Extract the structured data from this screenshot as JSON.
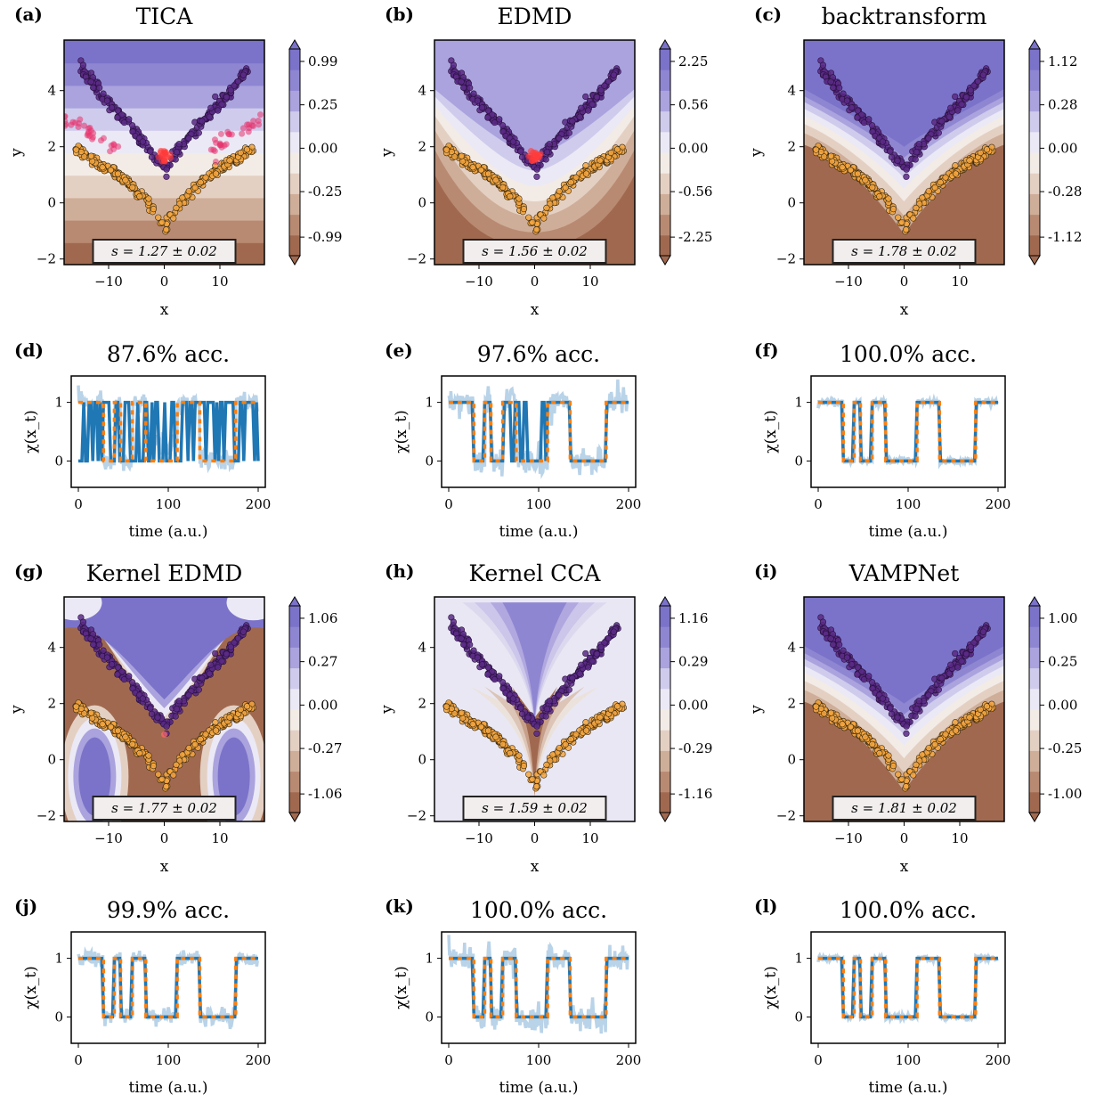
{
  "colors": {
    "state_top": "#5b2a86",
    "state_bottom": "#f4a640",
    "highlight": "#ff3b3b",
    "chi_light": "#b9d3e8",
    "chi_dark": "#1f77b4",
    "chi_true": "#ff7f0e",
    "brown": "#a0694f",
    "purple": "#7b73c9"
  },
  "contour_panels": [
    {
      "key": "a",
      "label": "(a)",
      "title": "TICA",
      "score": "s = 1.27 ± 0.02",
      "cbar_ticks": [
        "0.99",
        "0.25",
        "0.00",
        "-0.25",
        "-0.99"
      ],
      "xlabel": "x",
      "ylabel": "y",
      "xticks": [
        "−10",
        "0",
        "10"
      ],
      "yticks": [
        "−2",
        "0",
        "2",
        "4"
      ],
      "style": "tica",
      "highlight": "many"
    },
    {
      "key": "b",
      "label": "(b)",
      "title": "EDMD",
      "score": "s = 1.56 ± 0.02",
      "cbar_ticks": [
        "2.25",
        "0.56",
        "0.00",
        "-0.56",
        "-2.25"
      ],
      "xlabel": "x",
      "ylabel": "y",
      "xticks": [
        "−10",
        "0",
        "10"
      ],
      "yticks": [
        "−2",
        "0",
        "2",
        "4"
      ],
      "style": "edmd",
      "highlight": "few"
    },
    {
      "key": "c",
      "label": "(c)",
      "title": "backtransform",
      "score": "s = 1.78 ± 0.02",
      "cbar_ticks": [
        "1.12",
        "0.28",
        "0.00",
        "-0.28",
        "-1.12"
      ],
      "xlabel": "x",
      "ylabel": "y",
      "xticks": [
        "−10",
        "0",
        "10"
      ],
      "yticks": [
        "−2",
        "0",
        "2",
        "4"
      ],
      "style": "vamp",
      "highlight": "none"
    },
    {
      "key": "g",
      "label": "(g)",
      "title": "Kernel EDMD",
      "score": "s = 1.77 ± 0.02",
      "cbar_ticks": [
        "1.06",
        "0.27",
        "0.00",
        "-0.27",
        "-1.06"
      ],
      "xlabel": "x",
      "ylabel": "y",
      "xticks": [
        "−10",
        "0",
        "10"
      ],
      "yticks": [
        "−2",
        "0",
        "2",
        "4"
      ],
      "style": "kedmd",
      "highlight": "one"
    },
    {
      "key": "h",
      "label": "(h)",
      "title": "Kernel CCA",
      "score": "s = 1.59 ± 0.02",
      "cbar_ticks": [
        "1.16",
        "0.29",
        "0.00",
        "-0.29",
        "-1.16"
      ],
      "xlabel": "x",
      "ylabel": "y",
      "xticks": [
        "−10",
        "0",
        "10"
      ],
      "yticks": [
        "−2",
        "0",
        "2",
        "4"
      ],
      "style": "kcca",
      "highlight": "none"
    },
    {
      "key": "i",
      "label": "(i)",
      "title": "VAMPNet",
      "score": "s = 1.81 ± 0.02",
      "cbar_ticks": [
        "1.00",
        "0.25",
        "0.00",
        "-0.25",
        "-1.00"
      ],
      "xlabel": "x",
      "ylabel": "y",
      "xticks": [
        "−10",
        "0",
        "10"
      ],
      "yticks": [
        "−2",
        "0",
        "2",
        "4"
      ],
      "style": "vamp",
      "highlight": "none"
    }
  ],
  "timeseries_panels": [
    {
      "key": "d",
      "label": "(d)",
      "title": "87.6% acc.",
      "xlabel": "time (a.u.)",
      "ylabel": "χ(x_t)",
      "xticks": [
        "0",
        "100",
        "200"
      ],
      "yticks": [
        "0",
        "1"
      ],
      "mode": "tica"
    },
    {
      "key": "e",
      "label": "(e)",
      "title": "97.6% acc.",
      "xlabel": "time (a.u.)",
      "ylabel": "χ(x_t)",
      "xticks": [
        "0",
        "100",
        "200"
      ],
      "yticks": [
        "0",
        "1"
      ],
      "mode": "edmd"
    },
    {
      "key": "f",
      "label": "(f)",
      "title": "100.0% acc.",
      "xlabel": "time (a.u.)",
      "ylabel": "χ(x_t)",
      "xticks": [
        "0",
        "100",
        "200"
      ],
      "yticks": [
        "0",
        "1"
      ],
      "mode": "clean"
    },
    {
      "key": "j",
      "label": "(j)",
      "title": "99.9% acc.",
      "xlabel": "time (a.u.)",
      "ylabel": "χ(x_t)",
      "xticks": [
        "0",
        "100",
        "200"
      ],
      "yticks": [
        "0",
        "1"
      ],
      "mode": "noisy"
    },
    {
      "key": "k",
      "label": "(k)",
      "title": "100.0% acc.",
      "xlabel": "time (a.u.)",
      "ylabel": "χ(x_t)",
      "xticks": [
        "0",
        "100",
        "200"
      ],
      "yticks": [
        "0",
        "1"
      ],
      "mode": "noisy2"
    },
    {
      "key": "l",
      "label": "(l)",
      "title": "100.0% acc.",
      "xlabel": "time (a.u.)",
      "ylabel": "χ(x_t)",
      "xticks": [
        "0",
        "100",
        "200"
      ],
      "yticks": [
        "0",
        "1"
      ],
      "mode": "clean"
    }
  ],
  "chart_data": {
    "type": "scatter",
    "title": "",
    "xlim": [
      -18,
      18
    ],
    "ylim": [
      -2.2,
      5.8
    ],
    "true_state_switch_times": [
      0,
      28,
      40,
      47,
      60,
      75,
      110,
      135,
      175,
      182,
      200
    ],
    "true_state_values": [
      1,
      0,
      1,
      0,
      1,
      0,
      1,
      0,
      1,
      1
    ],
    "time_range": [
      0,
      200
    ],
    "chi_ylim": [
      -0.45,
      1.45
    ]
  }
}
